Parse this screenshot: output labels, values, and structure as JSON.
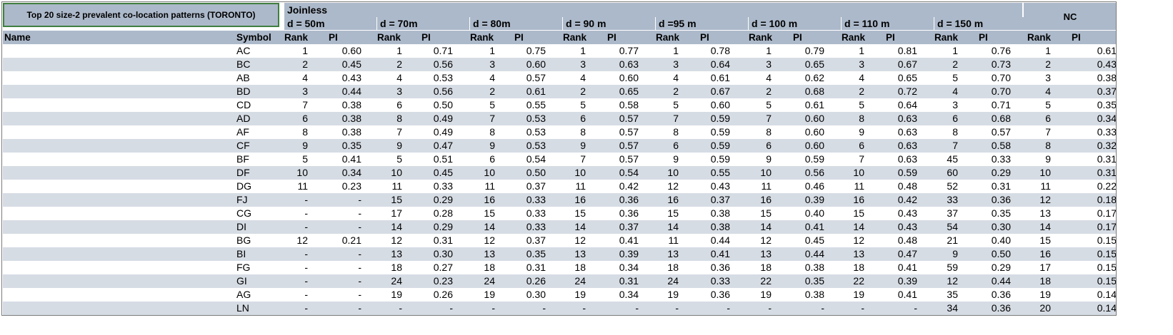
{
  "header": {
    "title": "Top 20 size-2 prevalent co-location patterns (TORONTO)",
    "joinless": "Joinless",
    "nc": "NC",
    "distances": [
      "d = 50m",
      "d = 70m",
      "d = 80m",
      "d = 90 m",
      "d =95 m",
      "d = 100 m",
      "d = 110 m",
      "d = 150 m"
    ],
    "name": "Name",
    "symbol": "Symbol",
    "rank": "Rank",
    "pi": "PI"
  },
  "rows": [
    {
      "symbol": "AC",
      "v": [
        "1",
        "0.60",
        "1",
        "0.71",
        "1",
        "0.75",
        "1",
        "0.77",
        "1",
        "0.78",
        "1",
        "0.79",
        "1",
        "0.81",
        "1",
        "0.76",
        "1",
        "0.61"
      ]
    },
    {
      "symbol": "BC",
      "v": [
        "2",
        "0.45",
        "2",
        "0.56",
        "3",
        "0.60",
        "3",
        "0.63",
        "3",
        "0.64",
        "3",
        "0.65",
        "3",
        "0.67",
        "2",
        "0.73",
        "2",
        "0.43"
      ]
    },
    {
      "symbol": "AB",
      "v": [
        "4",
        "0.43",
        "4",
        "0.53",
        "4",
        "0.57",
        "4",
        "0.60",
        "4",
        "0.61",
        "4",
        "0.62",
        "4",
        "0.65",
        "5",
        "0.70",
        "3",
        "0.38"
      ]
    },
    {
      "symbol": "BD",
      "v": [
        "3",
        "0.44",
        "3",
        "0.56",
        "2",
        "0.61",
        "2",
        "0.65",
        "2",
        "0.67",
        "2",
        "0.68",
        "2",
        "0.72",
        "4",
        "0.70",
        "4",
        "0.37"
      ]
    },
    {
      "symbol": "CD",
      "v": [
        "7",
        "0.38",
        "6",
        "0.50",
        "5",
        "0.55",
        "5",
        "0.58",
        "5",
        "0.60",
        "5",
        "0.61",
        "5",
        "0.64",
        "3",
        "0.71",
        "5",
        "0.35"
      ]
    },
    {
      "symbol": "AD",
      "v": [
        "6",
        "0.38",
        "8",
        "0.49",
        "7",
        "0.53",
        "6",
        "0.57",
        "7",
        "0.59",
        "7",
        "0.60",
        "8",
        "0.63",
        "6",
        "0.68",
        "6",
        "0.34"
      ]
    },
    {
      "symbol": "AF",
      "v": [
        "8",
        "0.38",
        "7",
        "0.49",
        "8",
        "0.53",
        "8",
        "0.57",
        "8",
        "0.59",
        "8",
        "0.60",
        "9",
        "0.63",
        "8",
        "0.57",
        "7",
        "0.33"
      ]
    },
    {
      "symbol": "CF",
      "v": [
        "9",
        "0.35",
        "9",
        "0.47",
        "9",
        "0.53",
        "9",
        "0.57",
        "6",
        "0.59",
        "6",
        "0.60",
        "6",
        "0.63",
        "7",
        "0.58",
        "8",
        "0.32"
      ]
    },
    {
      "symbol": "BF",
      "v": [
        "5",
        "0.41",
        "5",
        "0.51",
        "6",
        "0.54",
        "7",
        "0.57",
        "9",
        "0.59",
        "9",
        "0.59",
        "7",
        "0.63",
        "45",
        "0.33",
        "9",
        "0.31"
      ]
    },
    {
      "symbol": "DF",
      "v": [
        "10",
        "0.34",
        "10",
        "0.45",
        "10",
        "0.50",
        "10",
        "0.54",
        "10",
        "0.55",
        "10",
        "0.56",
        "10",
        "0.59",
        "60",
        "0.29",
        "10",
        "0.31"
      ]
    },
    {
      "symbol": "DG",
      "v": [
        "11",
        "0.23",
        "11",
        "0.33",
        "11",
        "0.37",
        "11",
        "0.42",
        "12",
        "0.43",
        "11",
        "0.46",
        "11",
        "0.48",
        "52",
        "0.31",
        "11",
        "0.22"
      ]
    },
    {
      "symbol": "FJ",
      "v": [
        "-",
        "-",
        "15",
        "0.29",
        "16",
        "0.33",
        "16",
        "0.36",
        "16",
        "0.37",
        "16",
        "0.39",
        "16",
        "0.42",
        "33",
        "0.36",
        "12",
        "0.18"
      ]
    },
    {
      "symbol": "CG",
      "v": [
        "-",
        "-",
        "17",
        "0.28",
        "15",
        "0.33",
        "15",
        "0.36",
        "15",
        "0.38",
        "15",
        "0.40",
        "15",
        "0.43",
        "37",
        "0.35",
        "13",
        "0.17"
      ]
    },
    {
      "symbol": "DI",
      "v": [
        "-",
        "-",
        "14",
        "0.29",
        "14",
        "0.33",
        "14",
        "0.37",
        "14",
        "0.38",
        "14",
        "0.41",
        "14",
        "0.43",
        "54",
        "0.30",
        "14",
        "0.17"
      ]
    },
    {
      "symbol": "BG",
      "v": [
        "12",
        "0.21",
        "12",
        "0.31",
        "12",
        "0.37",
        "12",
        "0.41",
        "11",
        "0.44",
        "12",
        "0.45",
        "12",
        "0.48",
        "21",
        "0.40",
        "15",
        "0.15"
      ]
    },
    {
      "symbol": "BI",
      "v": [
        "-",
        "-",
        "13",
        "0.30",
        "13",
        "0.35",
        "13",
        "0.39",
        "13",
        "0.41",
        "13",
        "0.44",
        "13",
        "0.47",
        "9",
        "0.50",
        "16",
        "0.15"
      ]
    },
    {
      "symbol": "FG",
      "v": [
        "-",
        "-",
        "18",
        "0.27",
        "18",
        "0.31",
        "18",
        "0.34",
        "18",
        "0.36",
        "18",
        "0.38",
        "18",
        "0.41",
        "59",
        "0.29",
        "17",
        "0.15"
      ]
    },
    {
      "symbol": "GI",
      "v": [
        "-",
        "-",
        "24",
        "0.23",
        "24",
        "0.26",
        "24",
        "0.31",
        "24",
        "0.33",
        "22",
        "0.35",
        "22",
        "0.39",
        "12",
        "0.44",
        "18",
        "0.15"
      ]
    },
    {
      "symbol": "AG",
      "v": [
        "-",
        "-",
        "19",
        "0.26",
        "19",
        "0.30",
        "19",
        "0.34",
        "19",
        "0.36",
        "19",
        "0.38",
        "19",
        "0.41",
        "35",
        "0.36",
        "19",
        "0.14"
      ]
    },
    {
      "symbol": "LN",
      "v": [
        "-",
        "-",
        "-",
        "-",
        "-",
        "-",
        "-",
        "-",
        "-",
        "-",
        "-",
        "-",
        "-",
        "-",
        "34",
        "0.36",
        "20",
        "0.14"
      ]
    }
  ]
}
